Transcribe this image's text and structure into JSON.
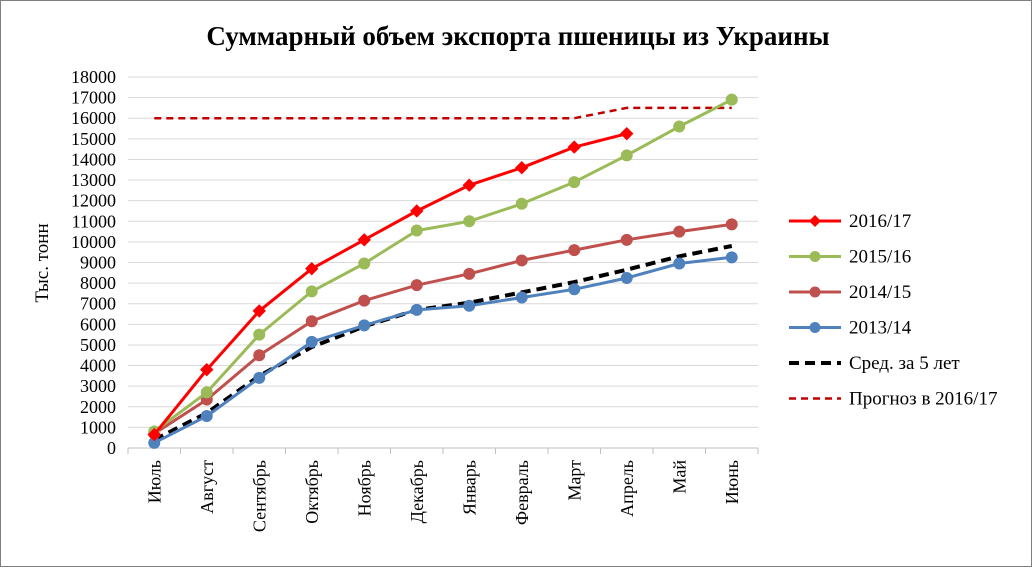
{
  "chart_data": {
    "type": "line",
    "title": "Суммарный объем экспорта пшеницы из Украины",
    "xlabel": "",
    "ylabel": "Тыс. тонн",
    "ylim": [
      0,
      18000
    ],
    "yticks": [
      0,
      1000,
      2000,
      3000,
      4000,
      5000,
      6000,
      7000,
      8000,
      9000,
      10000,
      11000,
      12000,
      13000,
      14000,
      15000,
      16000,
      17000,
      18000
    ],
    "categories": [
      "Июль",
      "Август",
      "Сентябрь",
      "Октябрь",
      "Ноябрь",
      "Декабрь",
      "Январь",
      "Февраль",
      "Март",
      "Апрель",
      "Май",
      "Июнь"
    ],
    "grid": true,
    "legend_position": "right",
    "series": [
      {
        "name": "2016/17",
        "color": "#ff0000",
        "marker": "diamond",
        "dash": "solid",
        "values": [
          650,
          3800,
          6650,
          8700,
          10100,
          11500,
          12750,
          13600,
          14600,
          15250,
          null,
          null
        ]
      },
      {
        "name": "2015/16",
        "color": "#9bbb59",
        "marker": "circle",
        "dash": "solid",
        "values": [
          800,
          2700,
          5500,
          7600,
          8950,
          10550,
          11000,
          11850,
          12900,
          14200,
          15600,
          16900
        ]
      },
      {
        "name": "2014/15",
        "color": "#c0504d",
        "marker": "circle",
        "dash": "solid",
        "values": [
          700,
          2350,
          4500,
          6150,
          7150,
          7900,
          8450,
          9100,
          9600,
          10100,
          10500,
          10850
        ]
      },
      {
        "name": "2013/14",
        "color": "#4f81bd",
        "marker": "circle",
        "dash": "solid",
        "values": [
          250,
          1550,
          3400,
          5150,
          5950,
          6700,
          6900,
          7300,
          7700,
          8250,
          8950,
          9250
        ]
      },
      {
        "name": "Сред. за 5 лет",
        "color": "#000000",
        "marker": "none",
        "dash": "dashed-thick",
        "values": [
          400,
          1700,
          3500,
          4900,
          5900,
          6700,
          7050,
          7550,
          8050,
          8650,
          9300,
          9800
        ]
      },
      {
        "name": "Прогноз в 2016/17",
        "color": "#c00000",
        "marker": "none",
        "dash": "dashed",
        "values": [
          16000,
          16000,
          16000,
          16000,
          16000,
          16000,
          16000,
          16000,
          16000,
          16500,
          16500,
          16500
        ]
      }
    ]
  }
}
